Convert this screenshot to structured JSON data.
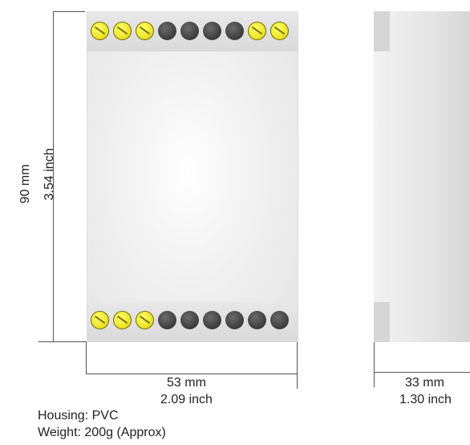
{
  "height_mm": "90 mm",
  "height_inch": "3.54 inch",
  "front_width_mm": "53 mm",
  "front_width_inch": "2.09 inch",
  "side_depth_mm": "33 mm",
  "side_depth_inch": "1.30 inch",
  "housing": "Housing: PVC",
  "weight": "Weight: 200g (Approx)",
  "top_terminals": [
    "yellow",
    "yellow",
    "yellow",
    "dark",
    "dark",
    "dark",
    "dark",
    "yellow",
    "yellow"
  ],
  "bottom_terminals": [
    "yellow",
    "yellow",
    "yellow",
    "dark",
    "dark",
    "dark",
    "dark",
    "dark",
    "dark"
  ],
  "colors": {
    "terminal_yellow": "#e9de1d",
    "terminal_dark": "#3b3b3b",
    "dimension_line": "#555555"
  }
}
